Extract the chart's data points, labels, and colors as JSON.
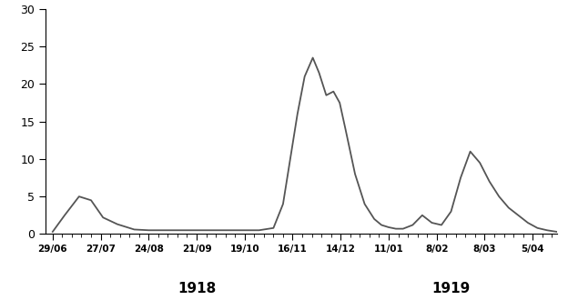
{
  "x_labels": [
    "29/06",
    "27/07",
    "24/08",
    "21/09",
    "19/10",
    "16/11",
    "14/12",
    "11/01",
    "8/02",
    "8/03",
    "5/04"
  ],
  "year_label_1918": {
    "text": "1918",
    "x": 3.0
  },
  "year_label_1919": {
    "text": "1919",
    "x": 8.3
  },
  "ylim": [
    0,
    30
  ],
  "yticks": [
    0,
    5,
    10,
    15,
    20,
    25,
    30
  ],
  "line_color": "#555555",
  "line_width": 1.3,
  "background_color": "#ffffff",
  "x_values": [
    0.0,
    0.25,
    0.55,
    0.8,
    1.05,
    1.35,
    1.7,
    2.0,
    2.3,
    2.6,
    3.0,
    3.3,
    3.7,
    4.0,
    4.3,
    4.6,
    4.8,
    4.95,
    5.1,
    5.25,
    5.42,
    5.55,
    5.7,
    5.85,
    5.98,
    6.1,
    6.3,
    6.5,
    6.7,
    6.85,
    7.0,
    7.15,
    7.3,
    7.5,
    7.7,
    7.9,
    8.1,
    8.3,
    8.5,
    8.7,
    8.9,
    9.1,
    9.3,
    9.5,
    9.7,
    9.9,
    10.1,
    10.3,
    10.5
  ],
  "y_values": [
    0.3,
    2.5,
    5.0,
    4.5,
    2.2,
    1.3,
    0.6,
    0.5,
    0.5,
    0.5,
    0.5,
    0.5,
    0.5,
    0.5,
    0.5,
    0.8,
    4.0,
    10.0,
    16.0,
    21.0,
    23.5,
    21.5,
    18.5,
    19.0,
    17.5,
    14.0,
    8.0,
    4.0,
    2.0,
    1.2,
    0.9,
    0.7,
    0.7,
    1.2,
    2.5,
    1.5,
    1.2,
    3.0,
    7.5,
    11.0,
    9.5,
    7.0,
    5.0,
    3.5,
    2.5,
    1.5,
    0.8,
    0.5,
    0.3
  ]
}
